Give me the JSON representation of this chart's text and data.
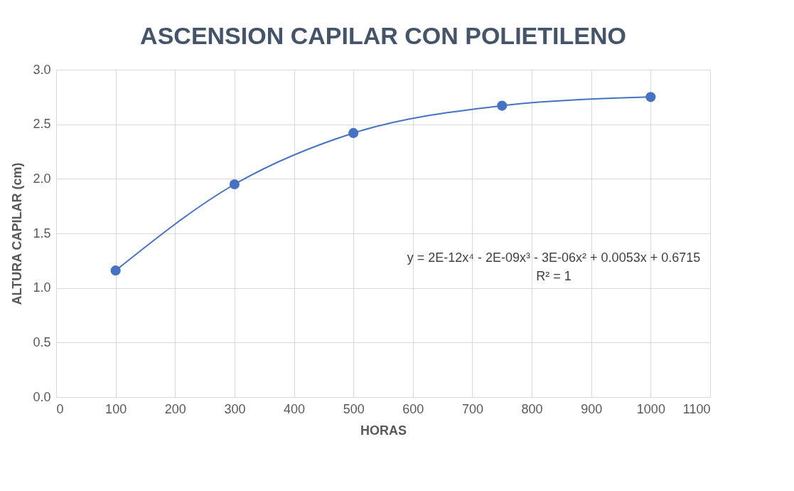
{
  "chart_data": {
    "type": "line",
    "title": "ASCENSION CAPILAR CON POLIETILENO",
    "xlabel": "HORAS",
    "ylabel": "ALTURA CAPILAR (cm)",
    "x": [
      100,
      300,
      500,
      750,
      1000
    ],
    "series": [
      {
        "color": "#4472c4",
        "values": [
          1.16,
          1.95,
          2.42,
          2.67,
          2.75
        ]
      }
    ],
    "xlim": [
      0,
      1100
    ],
    "xticks": [
      0,
      100,
      200,
      300,
      400,
      500,
      600,
      700,
      800,
      900,
      1000,
      1100
    ],
    "ylim": [
      0,
      3
    ],
    "yticks": [
      {
        "value": 0,
        "label": "0.0"
      },
      {
        "value": 0.5,
        "label": "0.5"
      },
      {
        "value": 1,
        "label": "1.0"
      },
      {
        "value": 1.5,
        "label": "1.5"
      },
      {
        "value": 2,
        "label": "2.0"
      },
      {
        "value": 2.5,
        "label": "2.5"
      },
      {
        "value": 3,
        "label": "3.0"
      }
    ],
    "grid": true,
    "marker": "circle",
    "line_style": "solid",
    "annotations": [
      "y = 2E-12x⁴ - 2E-09x³ - 3E-06x² + 0.0053x + 0.6715",
      "R² = 1"
    ]
  }
}
